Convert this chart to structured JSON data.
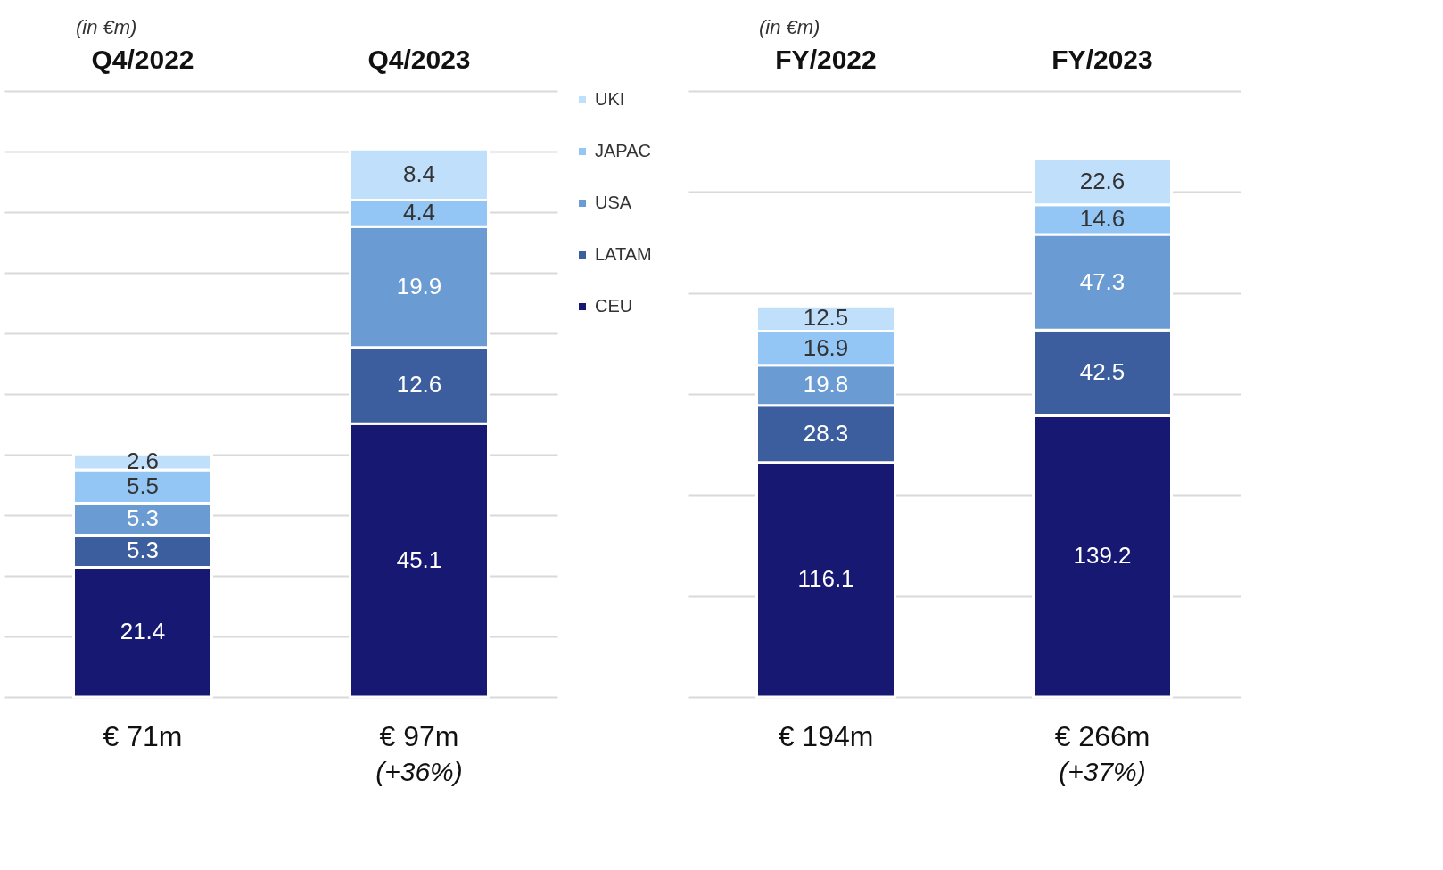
{
  "chart_data": [
    {
      "type": "bar",
      "stacked": true,
      "subtitle": "(in €m)",
      "categories": [
        "Q4/2022",
        "Q4/2023"
      ],
      "series": [
        {
          "name": "CEU",
          "color": "#171872",
          "values": [
            21.4,
            45.1
          ]
        },
        {
          "name": "LATAM",
          "color": "#3d5e9e",
          "values": [
            5.3,
            12.6
          ]
        },
        {
          "name": "USA",
          "color": "#6a9bd2",
          "values": [
            5.3,
            19.9
          ]
        },
        {
          "name": "JAPAC",
          "color": "#93c5f5",
          "values": [
            5.5,
            4.4
          ]
        },
        {
          "name": "UKI",
          "color": "#c0dffb",
          "values": [
            2.6,
            8.4
          ]
        }
      ],
      "data_labels": true,
      "annotations": [
        "€ 71m",
        "€ 97m",
        "(+36%)"
      ],
      "ylim": [
        0,
        100
      ],
      "yticks": [
        {
          "value": 0,
          "label": null
        },
        {
          "value": 10,
          "label": null
        },
        {
          "value": 20,
          "label": null
        },
        {
          "value": 30,
          "label": null
        },
        {
          "value": 40,
          "label": null
        },
        {
          "value": 50,
          "label": null
        },
        {
          "value": 60,
          "label": null
        },
        {
          "value": 70,
          "label": null
        },
        {
          "value": 80,
          "label": null
        },
        {
          "value": 90,
          "label": null
        },
        {
          "value": 100,
          "label": null
        }
      ],
      "tick_labels": "x",
      "grid": "y",
      "legend": "right"
    },
    {
      "type": "bar",
      "stacked": true,
      "subtitle": "(in €m)",
      "categories": [
        "FY/2022",
        "FY/2023"
      ],
      "series": [
        {
          "color": "#171872",
          "values": [
            116.1,
            139.2
          ]
        },
        {
          "color": "#3d5e9e",
          "values": [
            28.3,
            42.5
          ]
        },
        {
          "color": "#6a9bd2",
          "values": [
            19.8,
            47.3
          ]
        },
        {
          "color": "#93c5f5",
          "values": [
            16.9,
            14.6
          ]
        },
        {
          "color": "#c0dffb",
          "values": [
            12.5,
            22.6
          ]
        }
      ],
      "data_labels": true,
      "annotations": [
        "€ 194m",
        "€ 266m",
        "(+37%)"
      ],
      "ylim": [
        0,
        300
      ],
      "yticks": [
        {
          "value": 0,
          "label": null
        },
        {
          "value": 50,
          "label": null
        },
        {
          "value": 100,
          "label": null
        },
        {
          "value": 150,
          "label": null
        },
        {
          "value": 200,
          "label": null
        },
        {
          "value": 250,
          "label": null
        },
        {
          "value": 300,
          "label": null
        }
      ],
      "tick_labels": "x",
      "grid": "y"
    }
  ]
}
